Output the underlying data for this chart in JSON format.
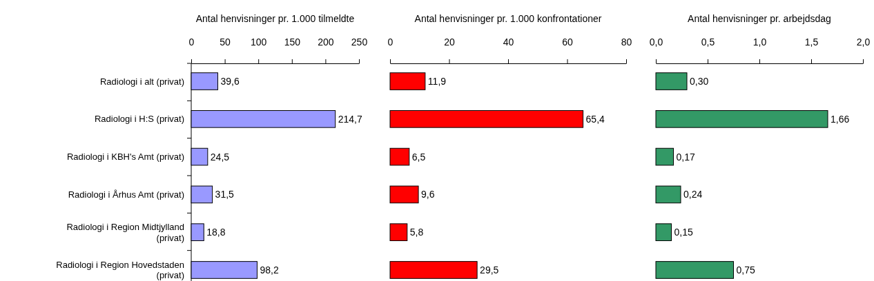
{
  "chart_data": [
    {
      "type": "bar",
      "orientation": "horizontal",
      "title": "Antal henvisninger pr. 1.000 tilmeldte",
      "categories": [
        "Radiologi i alt (privat)",
        "Radiologi i H:S (privat)",
        "Radiologi i KBH's Amt (privat)",
        "Radiologi i Århus Amt (privat)",
        "Radiologi i Region Midtjylland (privat)",
        "Radiologi i Region Hovedstaden (privat)"
      ],
      "values": [
        39.6,
        214.7,
        24.5,
        31.5,
        18.8,
        98.2
      ],
      "color": "#9999ff",
      "value_labels": [
        "39,6",
        "214,7",
        "24,5",
        "31,5",
        "18,8",
        "98,2"
      ],
      "xlim": [
        0,
        250
      ],
      "xticks": [
        0,
        50,
        100,
        150,
        200,
        250
      ],
      "grid": false
    },
    {
      "type": "bar",
      "orientation": "horizontal",
      "title": "Antal henvisninger pr. 1.000 konfrontationer",
      "categories": [
        null,
        null,
        null,
        null,
        null,
        null
      ],
      "values": [
        11.9,
        65.4,
        6.5,
        9.6,
        5.8,
        29.5
      ],
      "color": "#ff0000",
      "value_labels": [
        "11,9",
        "65,4",
        "6,5",
        "9,6",
        "5,8",
        "29,5"
      ],
      "xlim": [
        0,
        80
      ],
      "xticks": [
        0,
        20,
        40,
        60,
        80
      ],
      "grid": false,
      "tick_labels": "x"
    },
    {
      "type": "bar",
      "orientation": "horizontal",
      "title": "Antal henvisninger pr. arbejdsdag",
      "categories": [
        null,
        null,
        null,
        null,
        null,
        null
      ],
      "values": [
        0.3,
        1.66,
        0.17,
        0.24,
        0.15,
        0.75
      ],
      "color": "#339966",
      "value_labels": [
        "0,30",
        "1,66",
        "0,17",
        "0,24",
        "0,15",
        "0,75"
      ],
      "xlim": [
        0,
        2.0
      ],
      "xticks": [
        {
          "value": 0,
          "label": "0,0"
        },
        {
          "value": 0.5,
          "label": "0,5"
        },
        {
          "value": 1.0,
          "label": "1,0"
        },
        {
          "value": 1.5,
          "label": "1,5"
        },
        {
          "value": 2.0,
          "label": "2,0"
        }
      ],
      "grid": false,
      "tick_labels": "x"
    }
  ]
}
